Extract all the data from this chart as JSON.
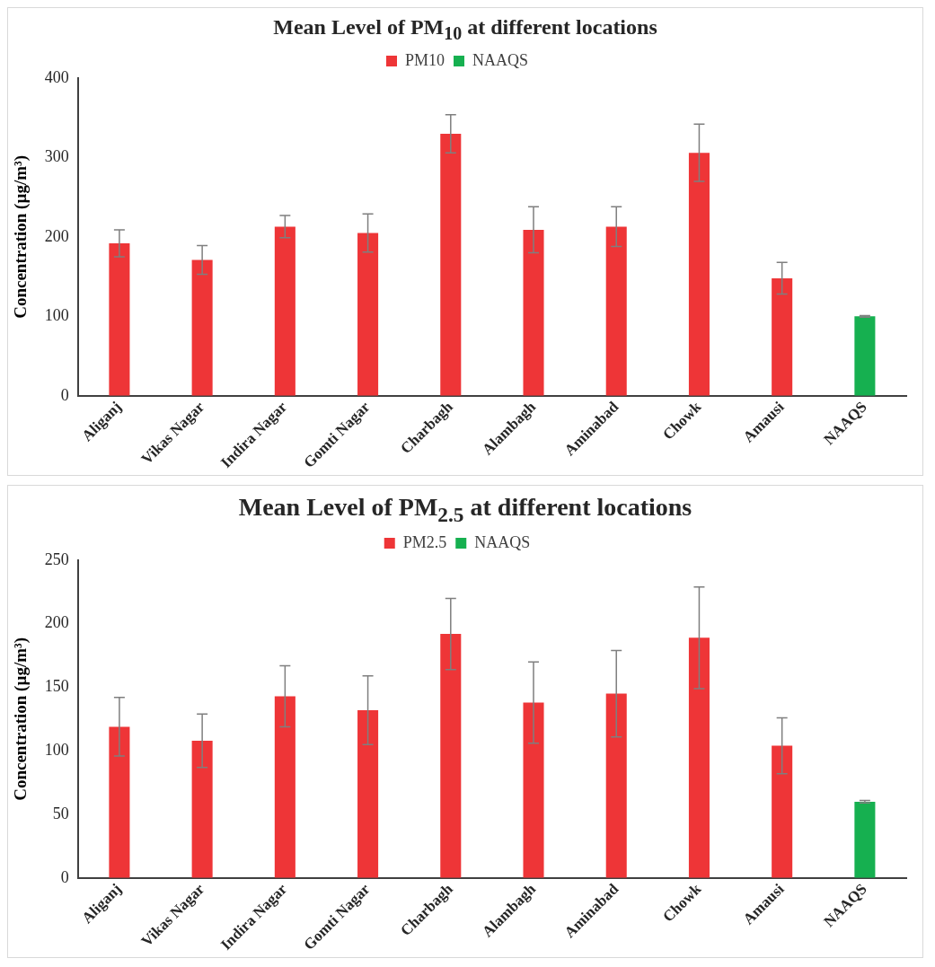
{
  "chart_data": [
    {
      "type": "bar",
      "title": "Mean Level of PM$_{10}$ at different locations",
      "ylabel": "Concentration (µg/m³)",
      "categories": [
        "Aliganj",
        "Vikas Nagar",
        "Indira Nagar",
        "Gomti Nagar",
        "Charbagh",
        "Alambagh",
        "Aminabad",
        "Chowk",
        "Amausi",
        "NAAQS"
      ],
      "series": [
        {
          "name": "PM10",
          "color": "#ee3537",
          "values": [
            192,
            171,
            213,
            205,
            330,
            209,
            213,
            306,
            148,
            null
          ],
          "errors": [
            17,
            18,
            14,
            24,
            24,
            29,
            25,
            36,
            20,
            null
          ]
        },
        {
          "name": "NAAQS",
          "color": "#16b050",
          "values": [
            null,
            null,
            null,
            null,
            null,
            null,
            null,
            null,
            null,
            100
          ],
          "errors": [
            null,
            null,
            null,
            null,
            null,
            null,
            null,
            null,
            null,
            1
          ]
        }
      ],
      "ylim": [
        0,
        400
      ],
      "yticks": [
        0,
        100,
        200,
        300,
        400
      ],
      "grid": false,
      "legend": "top"
    },
    {
      "type": "bar",
      "title": "Mean Level of PM$_{2.5}$ at different locations",
      "ylabel": "Concentration (µg/m³)",
      "categories": [
        "Aliganj",
        "Vikas Nagar",
        "Indira Nagar",
        "Gomti Nagar",
        "Charbagh",
        "Alambagh",
        "Aminabad",
        "Chowk",
        "Amausi",
        "NAAQS"
      ],
      "series": [
        {
          "name": "PM2.5",
          "color": "#ee3537",
          "values": [
            119,
            108,
            143,
            132,
            192,
            138,
            145,
            189,
            104,
            null
          ],
          "errors": [
            23,
            21,
            24,
            27,
            28,
            32,
            34,
            40,
            22,
            null
          ]
        },
        {
          "name": "NAAQS",
          "color": "#16b050",
          "values": [
            null,
            null,
            null,
            null,
            null,
            null,
            null,
            null,
            null,
            60
          ],
          "errors": [
            null,
            null,
            null,
            null,
            null,
            null,
            null,
            null,
            null,
            1
          ]
        }
      ],
      "ylim": [
        0,
        250
      ],
      "yticks": [
        0,
        50,
        100,
        150,
        200,
        250
      ],
      "grid": false,
      "legend": "top"
    }
  ]
}
